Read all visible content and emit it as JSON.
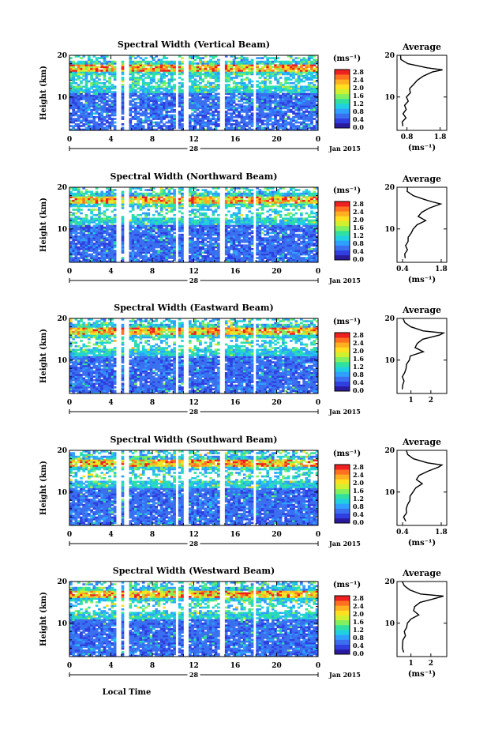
{
  "x_label": "Local Time",
  "date_label": "Jan 2015",
  "colorbar": {
    "unit_label": "(ms⁻¹)",
    "ticks": [
      "2.8",
      "2.4",
      "2.0",
      "1.6",
      "1.2",
      "0.8",
      "0.4",
      "0.0"
    ],
    "colors": [
      "#2a1a9e",
      "#2f3fe0",
      "#3a70f0",
      "#2fa0ff",
      "#20d0e0",
      "#30e0a0",
      "#80f060",
      "#d0f030",
      "#ffe020",
      "#ffb020",
      "#ff7020",
      "#ee2020"
    ]
  },
  "chart_data": [
    {
      "type": "heatmap",
      "title": "Spectral Width (Vertical Beam)",
      "ylabel": "Height (km)",
      "y_ticks": [
        "20",
        "10"
      ],
      "x_ticks": [
        "0",
        "4",
        "8",
        "12",
        "16",
        "20",
        "0"
      ],
      "day_label": "28",
      "xlim": [
        0,
        24
      ],
      "ylim": [
        2,
        20
      ],
      "average": {
        "title": "Average",
        "xlabel": "(ms⁻¹)",
        "x_ticks": [
          "0.8",
          "1.8"
        ],
        "y_ticks": [
          "20",
          "10"
        ],
        "xlim": [
          0.5,
          2.0
        ],
        "height": [
          3,
          4,
          5,
          6,
          7,
          8,
          9,
          10,
          11,
          12,
          13,
          14,
          15,
          16,
          16.5,
          17,
          18,
          19,
          20
        ],
        "value": [
          0.7,
          0.65,
          0.75,
          0.7,
          0.8,
          0.75,
          0.85,
          0.8,
          0.9,
          0.9,
          1.0,
          1.1,
          1.3,
          1.6,
          1.85,
          1.4,
          0.8,
          0.65,
          0.6
        ]
      }
    },
    {
      "type": "heatmap",
      "title": "Spectral Width (Northward Beam)",
      "ylabel": "Height (km)",
      "y_ticks": [
        "20",
        "10"
      ],
      "x_ticks": [
        "0",
        "4",
        "8",
        "12",
        "16",
        "20",
        "0"
      ],
      "day_label": "28",
      "xlim": [
        0,
        24
      ],
      "ylim": [
        2,
        20
      ],
      "average": {
        "title": "Average",
        "xlabel": "(ms⁻¹)",
        "x_ticks": [
          "0.4",
          "1.8"
        ],
        "y_ticks": [
          "20",
          "10"
        ],
        "xlim": [
          0.2,
          2.0
        ],
        "height": [
          3,
          4,
          5,
          6,
          7,
          8,
          9,
          10,
          11,
          12,
          13,
          14,
          15,
          16,
          16.5,
          17,
          18,
          19,
          20
        ],
        "value": [
          0.5,
          0.45,
          0.55,
          0.5,
          0.6,
          0.6,
          0.7,
          0.75,
          0.9,
          1.2,
          1.0,
          1.1,
          1.4,
          1.8,
          1.5,
          1.2,
          0.8,
          0.6,
          0.55
        ]
      }
    },
    {
      "type": "heatmap",
      "title": "Spectral Width (Eastward Beam)",
      "ylabel": "Height (km)",
      "y_ticks": [
        "20",
        "10"
      ],
      "x_ticks": [
        "0",
        "4",
        "8",
        "12",
        "16",
        "20",
        "0"
      ],
      "day_label": "28",
      "xlim": [
        0,
        24
      ],
      "ylim": [
        2,
        20
      ],
      "average": {
        "title": "Average",
        "xlabel": "",
        "x_ticks": [
          "1",
          "2"
        ],
        "y_ticks": [
          "20",
          "10"
        ],
        "xlim": [
          0.3,
          2.8
        ],
        "height": [
          3,
          4,
          5,
          6,
          7,
          8,
          9,
          10,
          11,
          12,
          13,
          14,
          15,
          16,
          16.5,
          17,
          18,
          19,
          20
        ],
        "value": [
          0.6,
          0.55,
          0.65,
          0.6,
          0.7,
          0.75,
          0.8,
          0.9,
          1.0,
          1.6,
          1.2,
          1.3,
          1.6,
          2.4,
          2.6,
          1.6,
          1.0,
          0.7,
          0.6
        ]
      }
    },
    {
      "type": "heatmap",
      "title": "Spectral Width (Southward Beam)",
      "ylabel": "Height (km)",
      "y_ticks": [
        "20",
        "10"
      ],
      "x_ticks": [
        "0",
        "4",
        "8",
        "12",
        "16",
        "20",
        "0"
      ],
      "day_label": "28",
      "xlim": [
        0,
        24
      ],
      "ylim": [
        2,
        20
      ],
      "average": {
        "title": "Average",
        "xlabel": "(ms⁻¹)",
        "x_ticks": [
          "0.4",
          "1.8"
        ],
        "y_ticks": [
          "20",
          "10"
        ],
        "xlim": [
          0.2,
          2.0
        ],
        "height": [
          3,
          4,
          5,
          6,
          7,
          8,
          9,
          10,
          11,
          12,
          13,
          14,
          15,
          16,
          16.5,
          17,
          18,
          19,
          20
        ],
        "value": [
          0.5,
          0.45,
          0.55,
          0.5,
          0.6,
          0.65,
          0.7,
          0.75,
          0.85,
          1.1,
          0.9,
          1.0,
          1.3,
          1.7,
          1.85,
          1.3,
          0.8,
          0.6,
          0.5
        ]
      }
    },
    {
      "type": "heatmap",
      "title": "Spectral Width (Westward Beam)",
      "ylabel": "Height (km)",
      "y_ticks": [
        "20",
        "10"
      ],
      "x_ticks": [
        "0",
        "4",
        "8",
        "12",
        "16",
        "20",
        "0"
      ],
      "day_label": "28",
      "xlim": [
        0,
        24
      ],
      "ylim": [
        2,
        20
      ],
      "average": {
        "title": "Average",
        "xlabel": "(ms⁻¹)",
        "x_ticks": [
          "1",
          "2"
        ],
        "y_ticks": [
          "20",
          "10"
        ],
        "xlim": [
          0.3,
          2.8
        ],
        "height": [
          3,
          4,
          5,
          6,
          7,
          8,
          9,
          10,
          11,
          12,
          13,
          14,
          15,
          16,
          16.5,
          17,
          18,
          19,
          20
        ],
        "value": [
          0.6,
          0.55,
          0.6,
          0.6,
          0.7,
          0.7,
          0.8,
          0.85,
          1.0,
          1.4,
          1.1,
          1.2,
          1.5,
          2.3,
          2.6,
          1.5,
          0.9,
          0.65,
          0.55
        ]
      }
    }
  ]
}
